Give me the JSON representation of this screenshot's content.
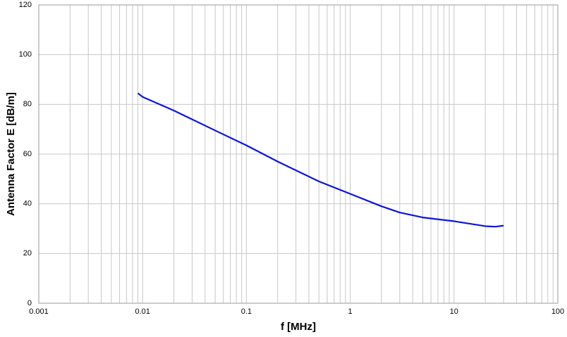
{
  "chart_data": {
    "type": "line",
    "x_label": "f [MHz]",
    "y_label": "Antenna Factor E [dB/m]",
    "x_scale": "log",
    "xlim": [
      0.001,
      100
    ],
    "xticks": [
      0.001,
      0.01,
      0.1,
      1,
      10,
      100
    ],
    "ylim": [
      0,
      120
    ],
    "yticks": [
      0,
      20,
      40,
      60,
      80,
      100,
      120
    ],
    "grid": true,
    "minor_grid": true,
    "series": [
      {
        "color": "#0a14e0",
        "x": [
          0.009,
          0.01,
          0.02,
          0.05,
          0.1,
          0.2,
          0.5,
          1,
          2,
          3,
          5,
          10,
          20,
          25,
          30
        ],
        "values": [
          84.5,
          83,
          77.5,
          69.5,
          63.5,
          57,
          49,
          44,
          39,
          36.5,
          34.5,
          33,
          31,
          30.8,
          31.2
        ]
      }
    ]
  }
}
